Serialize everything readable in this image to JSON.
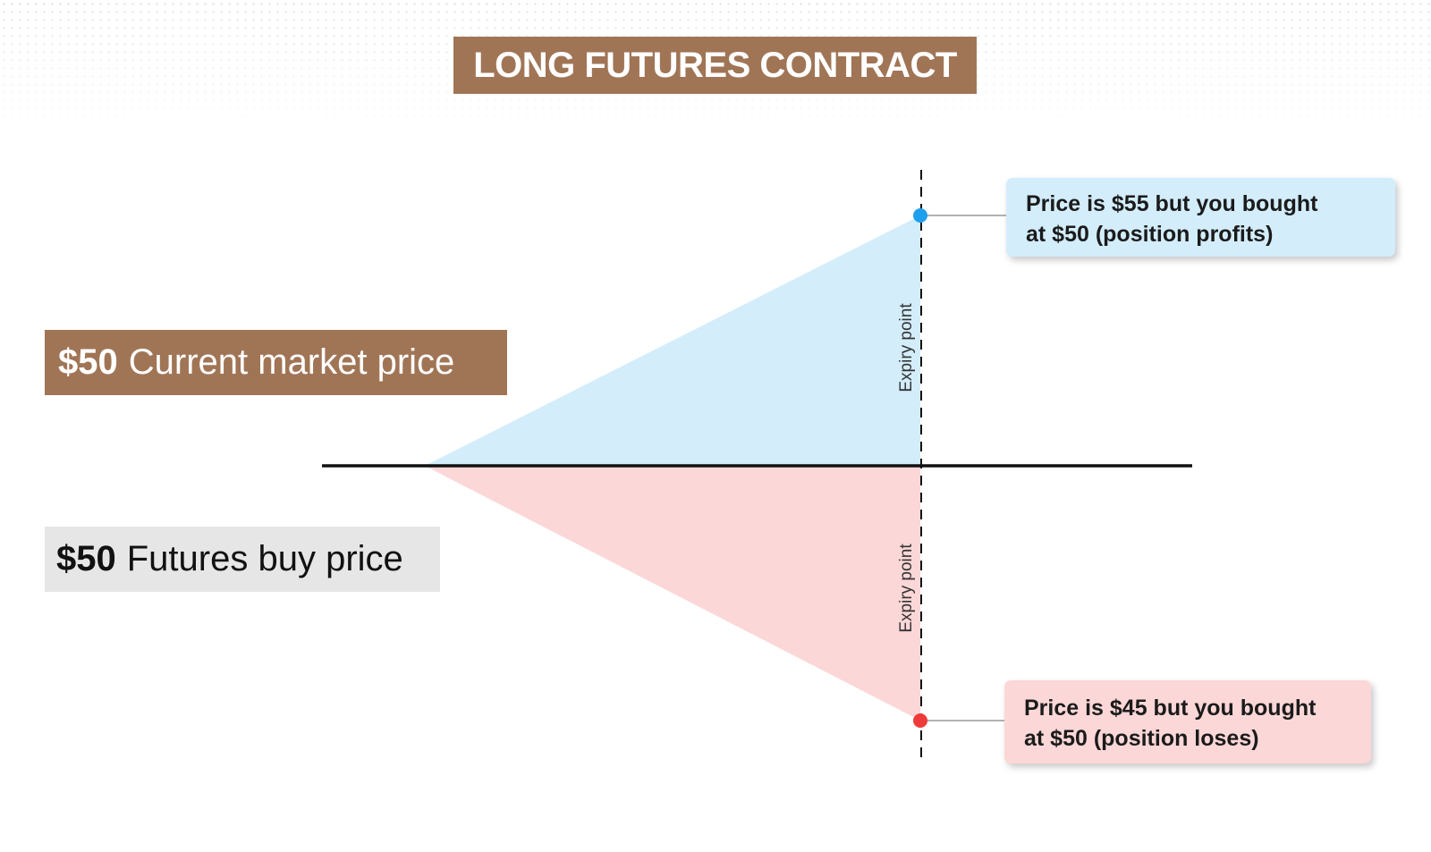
{
  "title": "LONG FUTURES CONTRACT",
  "labels": {
    "current_market": {
      "amount": "$50",
      "text": "Current market price"
    },
    "futures_buy": {
      "amount": "$50",
      "text": "Futures buy price"
    }
  },
  "expiry_label": "Expiry point",
  "callouts": {
    "profit": {
      "line1": "Price is $55 but you bought",
      "line2": "at $50 (position profits)"
    },
    "loss": {
      "line1": "Price is $45 but you bought",
      "line2": "at $50 (position loses)"
    }
  },
  "colors": {
    "brand": "#a07556",
    "profit_fill": "#d3edfb",
    "loss_fill": "#fcd7d8",
    "profit_marker": "#1ea0ee",
    "loss_marker": "#ee3a3a",
    "neutral_box": "#e6e6e6"
  }
}
